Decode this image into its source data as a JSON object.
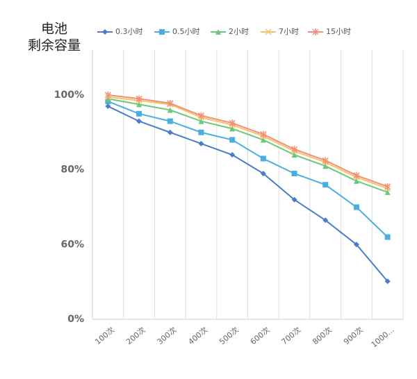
{
  "chart_data": {
    "type": "line",
    "y_label": [
      "电池",
      "剩余容量"
    ],
    "categories": [
      "100次",
      "200次",
      "300次",
      "400次",
      "500次",
      "600次",
      "700次",
      "800次",
      "900次",
      "1000..."
    ],
    "series": [
      {
        "name": "0.3小时",
        "color": "#4a7cc9",
        "marker": "diamond",
        "values": [
          97,
          93,
          90,
          87,
          84,
          79,
          72,
          66.5,
          60,
          30.5
        ]
      },
      {
        "name": "0.5小时",
        "color": "#4aaee0",
        "marker": "square",
        "values": [
          98.3,
          95,
          93,
          90,
          88,
          83,
          79,
          76,
          70,
          62
        ]
      },
      {
        "name": "2小时",
        "color": "#6dc77a",
        "marker": "triangle",
        "values": [
          99,
          97.5,
          96,
          93,
          91,
          88,
          84,
          81,
          77,
          74
        ]
      },
      {
        "name": "7小时",
        "color": "#f5c36a",
        "marker": "x",
        "values": [
          99.5,
          98.5,
          97.5,
          94,
          92,
          89,
          85,
          82,
          78,
          75
        ]
      },
      {
        "name": "15小时",
        "color": "#f0907a",
        "marker": "star",
        "values": [
          100,
          99,
          97.8,
          94.5,
          92.5,
          89.5,
          85.5,
          82.5,
          78.5,
          75.5
        ]
      }
    ],
    "ylim": [
      0,
      112
    ],
    "yticks": [
      {
        "value": 0,
        "label": "0%"
      },
      {
        "value": 60,
        "label": "60%"
      },
      {
        "value": 80,
        "label": "80%"
      },
      {
        "value": 100,
        "label": "100%"
      }
    ],
    "grid": "vertical",
    "legend": "top"
  }
}
